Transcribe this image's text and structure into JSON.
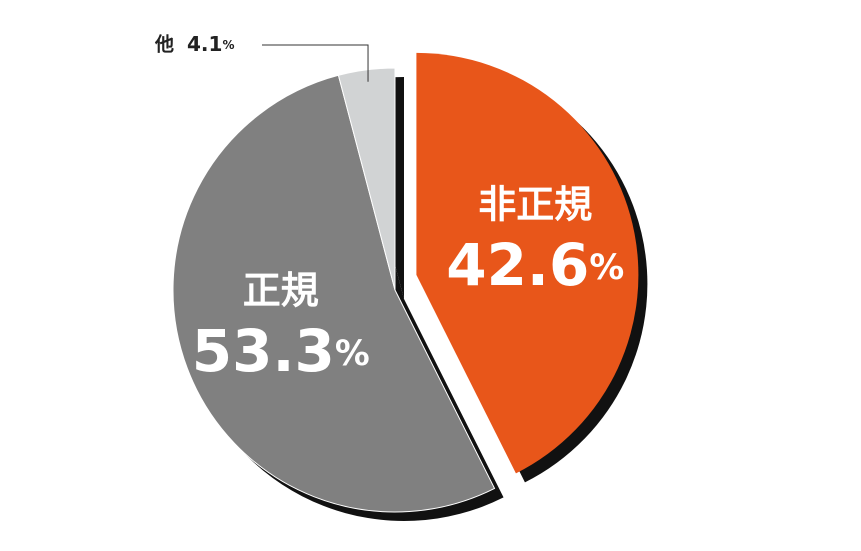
{
  "chart_data": {
    "type": "pie",
    "categories": [
      "非正規",
      "正規",
      "他"
    ],
    "values": [
      42.6,
      53.3,
      4.1
    ],
    "value_labels": [
      "42.6%",
      "53.3%",
      "4.1%"
    ],
    "colors": [
      "#e8561a",
      "#808080",
      "#d1d3d4"
    ],
    "explode": [
      true,
      false,
      false
    ]
  }
}
